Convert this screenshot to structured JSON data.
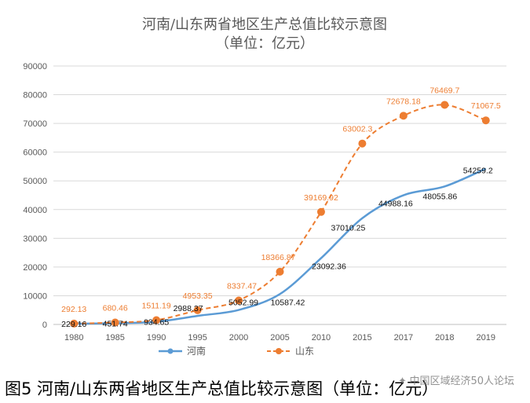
{
  "chart_data": {
    "type": "line",
    "title_line1": "河南/山东两省地区生产总值比较示意图",
    "title_line2": "（单位：亿元）",
    "categories": [
      "1980",
      "1985",
      "1990",
      "1995",
      "2000",
      "2005",
      "2010",
      "2015",
      "2017",
      "2018",
      "2019"
    ],
    "y_ticks": [
      "0",
      "10000",
      "20000",
      "30000",
      "40000",
      "50000",
      "60000",
      "70000",
      "80000",
      "90000"
    ],
    "ylim": [
      0,
      90000
    ],
    "grid": true,
    "legend_position": "bottom",
    "series": [
      {
        "name": "河南",
        "color": "#5B9BD5",
        "style": "solid",
        "values": [
          229.16,
          451.74,
          934.65,
          2988.37,
          5052.99,
          10587.42,
          23092.36,
          37010.25,
          44988.16,
          48055.86,
          54259.2
        ],
        "labels": [
          "229.16",
          "451.74",
          "934.65",
          "2988.37",
          "5052.99",
          "10587.42",
          "23092.36",
          "37010.25",
          "44988.16",
          "48055.86",
          "54259.2"
        ]
      },
      {
        "name": "山东",
        "color": "#ED7D31",
        "style": "dashed-circle-markers",
        "values": [
          292.13,
          680.46,
          1511.19,
          4953.35,
          8337.47,
          18366.87,
          39169.92,
          63002.3,
          72678.18,
          76469.7,
          71067.5
        ],
        "labels": [
          "292.13",
          "680.46",
          "1511.19",
          "4953.35",
          "8337.47",
          "18366.87",
          "39169.92",
          "63002.3",
          "72678.18",
          "76469.7",
          "71067.5"
        ]
      }
    ]
  },
  "caption": {
    "text": "图5   河南/山东两省地区生产总值比较示意图（单位：亿元）"
  },
  "watermark": {
    "text": "中国区域经济50人论坛",
    "icon": "wechat-icon"
  }
}
